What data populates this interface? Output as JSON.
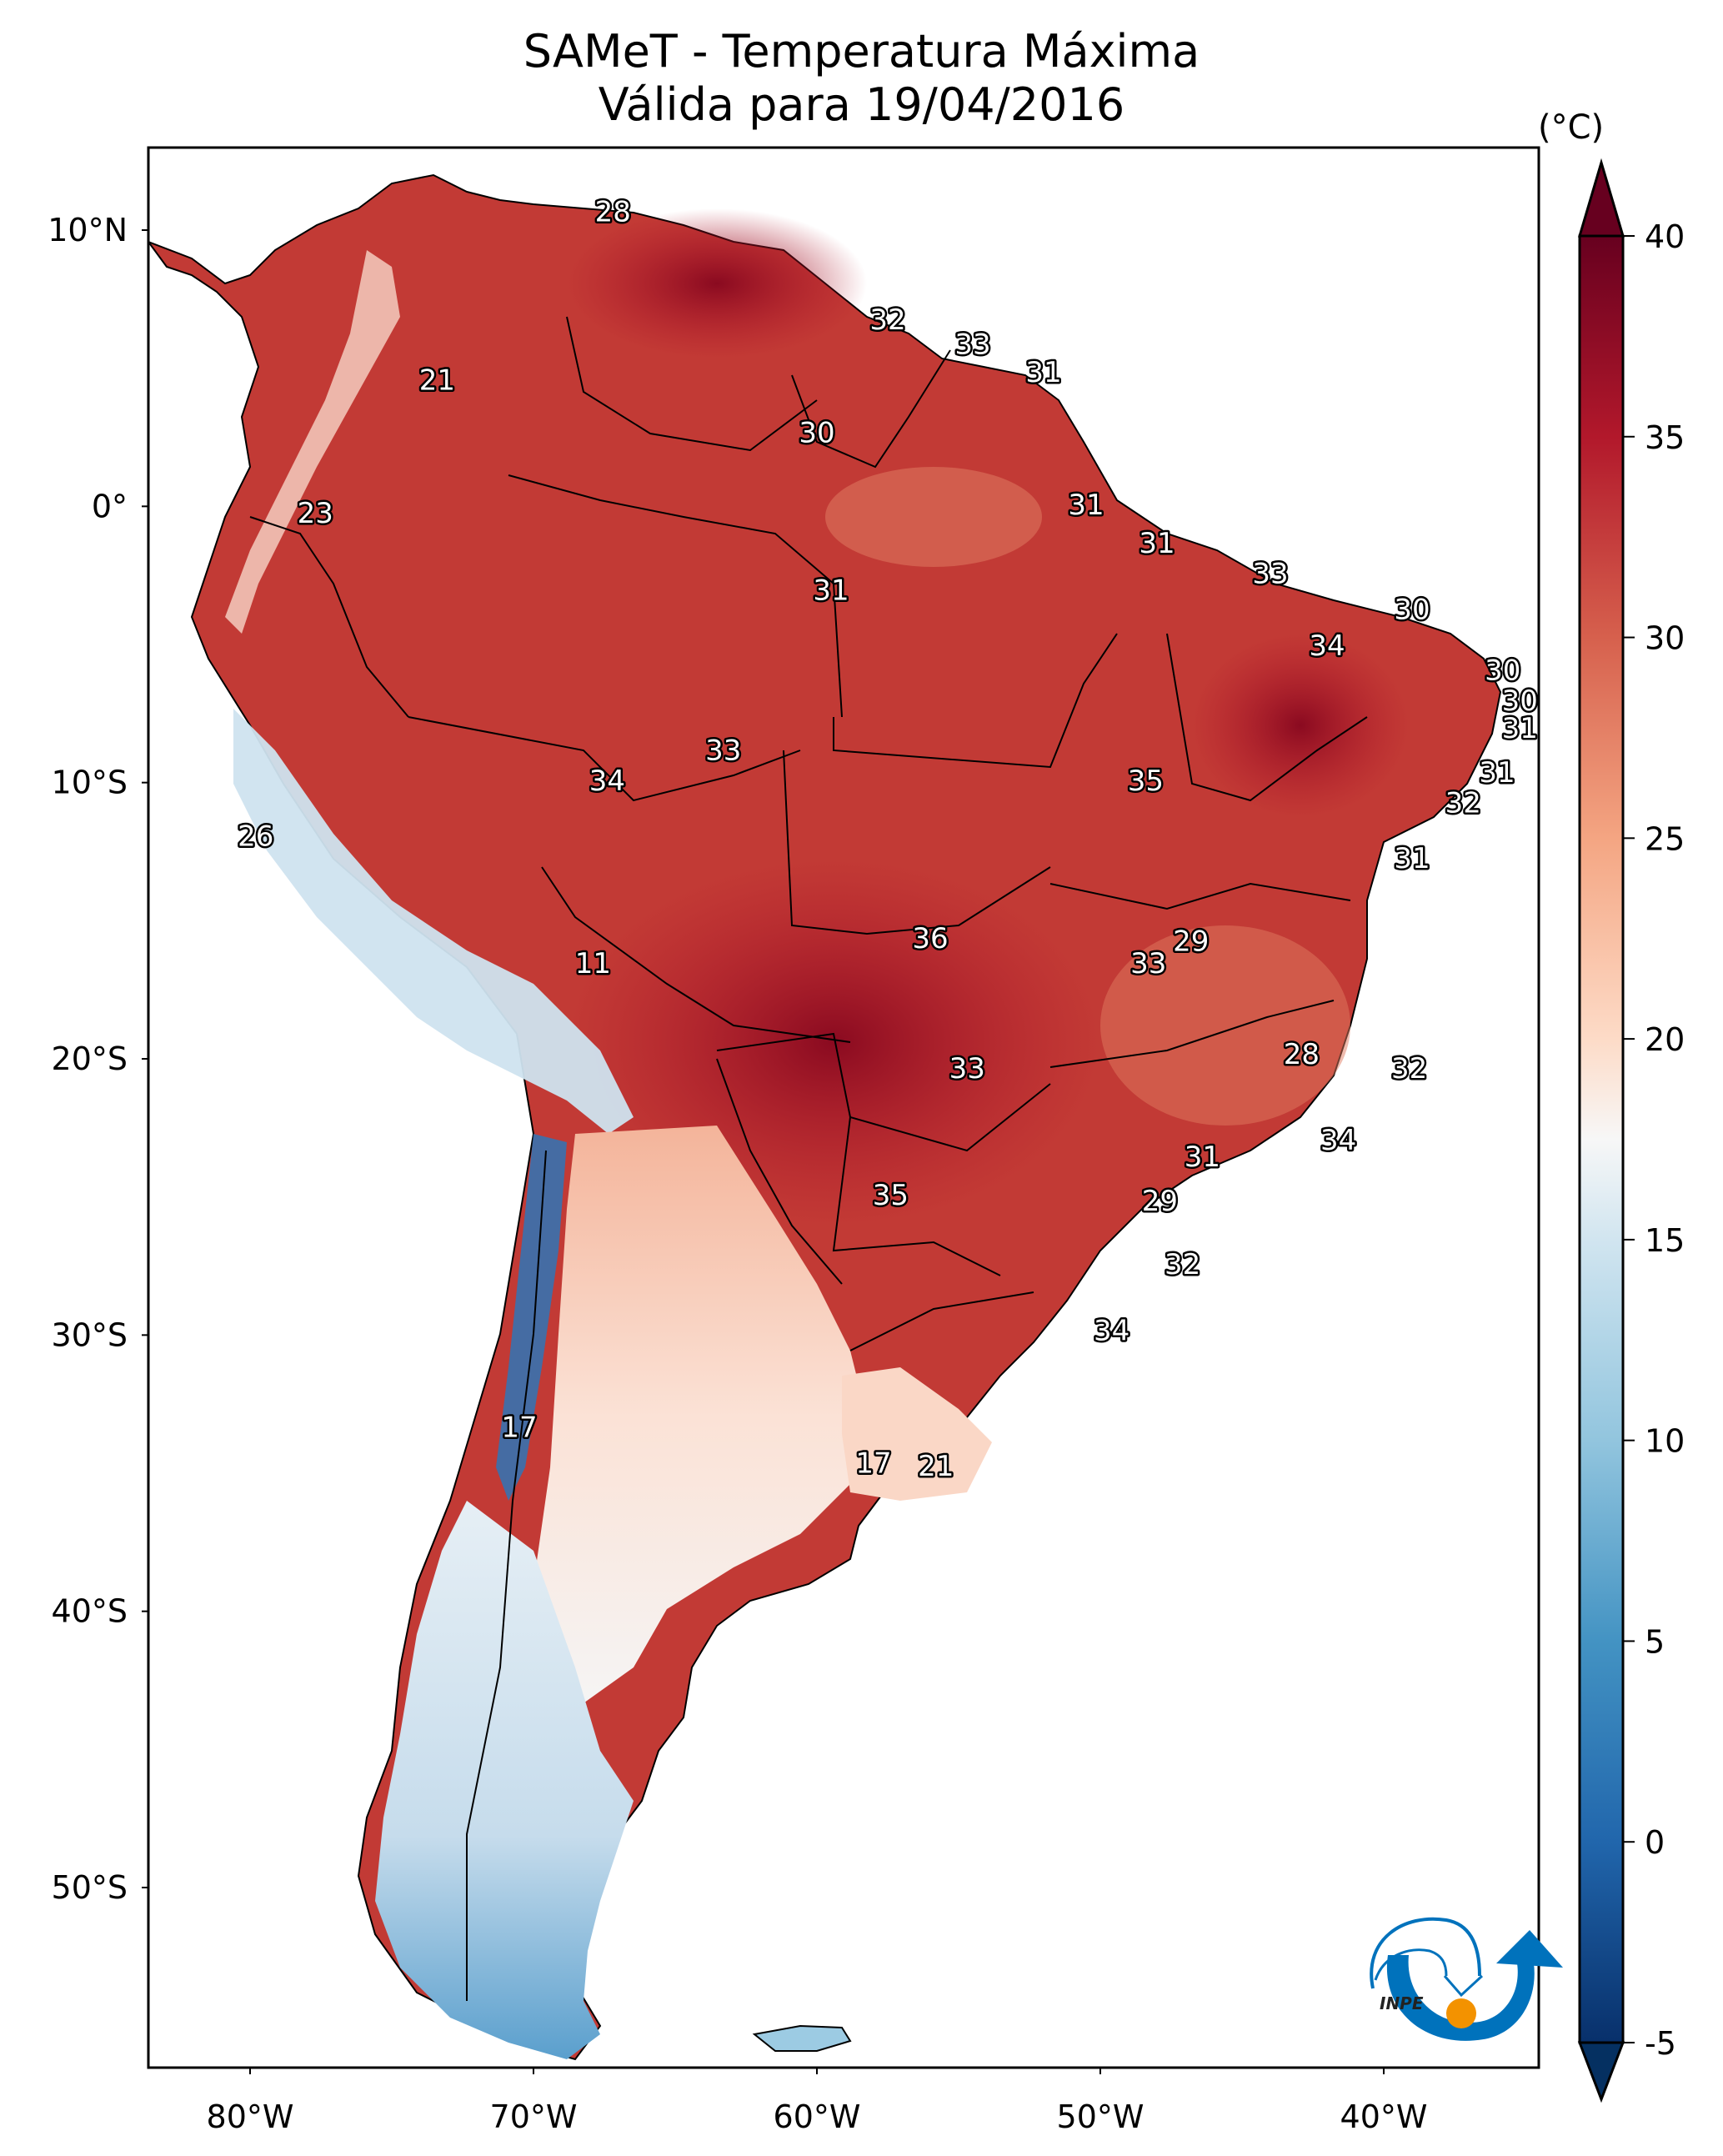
{
  "chart_data": {
    "type": "heatmap",
    "title": "SAMeT - Temperatura Máxima",
    "subtitle": "Válida para 19/04/2016",
    "variable": "Maximum temperature",
    "units": "(°C)",
    "region": "South America",
    "lon_range": [
      -83,
      -33
    ],
    "lat_range": [
      -56,
      13
    ],
    "x_ticks": [
      {
        "value": -80,
        "label": "80°W"
      },
      {
        "value": -70,
        "label": "70°W"
      },
      {
        "value": -60,
        "label": "60°W"
      },
      {
        "value": -50,
        "label": "50°W"
      },
      {
        "value": -40,
        "label": "40°W"
      }
    ],
    "y_ticks": [
      {
        "value": 10,
        "label": "10°N"
      },
      {
        "value": 0,
        "label": "0°"
      },
      {
        "value": -10,
        "label": "10°S"
      },
      {
        "value": -20,
        "label": "20°S"
      },
      {
        "value": -30,
        "label": "30°S"
      },
      {
        "value": -40,
        "label": "40°S"
      },
      {
        "value": -50,
        "label": "50°S"
      }
    ],
    "colorbar": {
      "colormap": "RdBu_r",
      "range": [
        -5,
        40
      ],
      "extend": "both",
      "ticks": [
        40,
        35,
        30,
        25,
        20,
        15,
        10,
        5,
        0,
        -5
      ],
      "tick_labels": [
        "40",
        "35",
        "30",
        "25",
        "20",
        "15",
        "10",
        "5",
        "0",
        "-5"
      ],
      "stops": [
        {
          "value": -7,
          "color": "#053061"
        },
        {
          "value": -5,
          "color": "#08306b"
        },
        {
          "value": 0,
          "color": "#2166ac"
        },
        {
          "value": 5,
          "color": "#4393c3"
        },
        {
          "value": 10,
          "color": "#92c5de"
        },
        {
          "value": 15,
          "color": "#d1e5f0"
        },
        {
          "value": 17.5,
          "color": "#f7f7f7"
        },
        {
          "value": 20,
          "color": "#fddbc7"
        },
        {
          "value": 25,
          "color": "#f4a582"
        },
        {
          "value": 30,
          "color": "#d6604d"
        },
        {
          "value": 35,
          "color": "#b2182b"
        },
        {
          "value": 40,
          "color": "#67001f"
        }
      ]
    },
    "contour_labels": [
      {
        "value": 28,
        "lon": -67.2,
        "lat": 10.6
      },
      {
        "value": 21,
        "lon": -73.4,
        "lat": 4.5
      },
      {
        "value": 32,
        "lon": -57.5,
        "lat": 6.7
      },
      {
        "value": 33,
        "lon": -54.5,
        "lat": 5.8
      },
      {
        "value": 31,
        "lon": -52.0,
        "lat": 4.8
      },
      {
        "value": 30,
        "lon": -60.0,
        "lat": 2.6
      },
      {
        "value": 23,
        "lon": -77.7,
        "lat": -0.3
      },
      {
        "value": 31,
        "lon": -50.5,
        "lat": 0.0
      },
      {
        "value": 31,
        "lon": -48.0,
        "lat": -1.4
      },
      {
        "value": 31,
        "lon": -59.5,
        "lat": -3.1
      },
      {
        "value": 33,
        "lon": -44.0,
        "lat": -2.5
      },
      {
        "value": 30,
        "lon": -39.0,
        "lat": -3.8
      },
      {
        "value": 34,
        "lon": -42.0,
        "lat": -5.1
      },
      {
        "value": 30,
        "lon": -35.8,
        "lat": -6.0
      },
      {
        "value": 30,
        "lon": -35.2,
        "lat": -7.1
      },
      {
        "value": 31,
        "lon": -35.2,
        "lat": -8.1
      },
      {
        "value": 31,
        "lon": -36.0,
        "lat": -9.7
      },
      {
        "value": 32,
        "lon": -37.2,
        "lat": -10.8
      },
      {
        "value": 31,
        "lon": -39.0,
        "lat": -12.8
      },
      {
        "value": 33,
        "lon": -63.3,
        "lat": -8.9
      },
      {
        "value": 34,
        "lon": -67.4,
        "lat": -10.0
      },
      {
        "value": 35,
        "lon": -48.4,
        "lat": -10.0
      },
      {
        "value": 26,
        "lon": -79.8,
        "lat": -12.0
      },
      {
        "value": 11,
        "lon": -67.9,
        "lat": -16.6
      },
      {
        "value": 36,
        "lon": -56.0,
        "lat": -15.7
      },
      {
        "value": 29,
        "lon": -46.8,
        "lat": -15.8
      },
      {
        "value": 33,
        "lon": -48.3,
        "lat": -16.6
      },
      {
        "value": 28,
        "lon": -42.9,
        "lat": -19.9
      },
      {
        "value": 32,
        "lon": -39.1,
        "lat": -20.4
      },
      {
        "value": 33,
        "lon": -54.7,
        "lat": -20.4
      },
      {
        "value": 34,
        "lon": -41.6,
        "lat": -23.0
      },
      {
        "value": 31,
        "lon": -46.4,
        "lat": -23.6
      },
      {
        "value": 35,
        "lon": -57.4,
        "lat": -25.0
      },
      {
        "value": 29,
        "lon": -47.9,
        "lat": -25.2
      },
      {
        "value": 32,
        "lon": -47.1,
        "lat": -27.5
      },
      {
        "value": 34,
        "lon": -49.6,
        "lat": -29.9
      },
      {
        "value": 17,
        "lon": -70.5,
        "lat": -33.4
      },
      {
        "value": 17,
        "lon": -58.0,
        "lat": -34.7
      },
      {
        "value": 21,
        "lon": -55.8,
        "lat": -34.8
      }
    ],
    "grid": false
  },
  "logo": {
    "text": "INPE",
    "colors": {
      "blue": "#0072bc",
      "orange": "#f39200"
    }
  }
}
